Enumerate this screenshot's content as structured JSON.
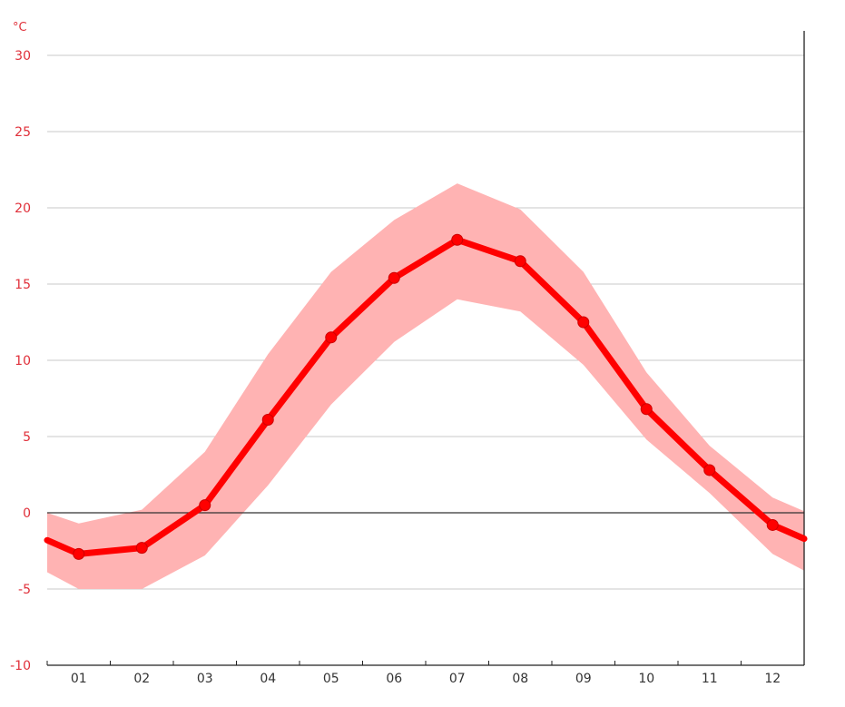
{
  "chart_data": {
    "type": "line",
    "unit_label": "°C",
    "ylim": [
      -10,
      30
    ],
    "yticks": [
      "30",
      "25",
      "20",
      "15",
      "10",
      "5",
      "0",
      "-5",
      "-10"
    ],
    "ytick_values": [
      30,
      25,
      20,
      15,
      10,
      5,
      0,
      -5,
      -10
    ],
    "categories": [
      "01",
      "02",
      "03",
      "04",
      "05",
      "06",
      "07",
      "08",
      "09",
      "10",
      "11",
      "12"
    ],
    "series": [
      {
        "values": [
          -2.7,
          -2.3,
          0.5,
          6.1,
          11.5,
          15.4,
          17.9,
          16.5,
          12.5,
          6.8,
          2.8,
          -0.8
        ],
        "edge_start": -1.8,
        "edge_end": -1.7,
        "color": "#ff0000"
      }
    ],
    "band": {
      "color": "#ffb3b3",
      "upper": [
        -0.7,
        0.2,
        4.0,
        10.4,
        15.8,
        19.2,
        21.6,
        19.9,
        15.8,
        9.2,
        4.4,
        1.0
      ],
      "lower": [
        -5.0,
        -5.0,
        -2.8,
        1.8,
        7.1,
        11.2,
        14.0,
        13.2,
        9.7,
        4.8,
        1.3,
        -2.7
      ],
      "upper_edge_start": 0.0,
      "upper_edge_end": 0.1,
      "lower_edge_start": -3.9,
      "lower_edge_end": -3.8
    },
    "grid": true,
    "zero_line_color": "#333333",
    "axis_label_color": "#e0303a"
  }
}
